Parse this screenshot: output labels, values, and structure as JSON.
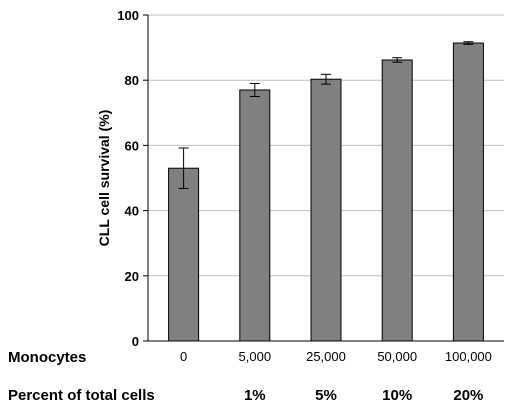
{
  "chart_data": {
    "type": "bar",
    "categories": [
      "0",
      "5,000",
      "25,000",
      "50,000",
      "100,000"
    ],
    "category_row_label": "Monocytes",
    "secondary_row_label": "Percent of total cells",
    "secondary_labels": [
      "",
      "1%",
      "5%",
      "10%",
      "20%"
    ],
    "values": [
      53,
      77,
      80.3,
      86.2,
      91.4
    ],
    "errors": [
      6.2,
      2.0,
      1.5,
      0.7,
      0.4
    ],
    "ylabel": "CLL cell survival (%)",
    "xlabel": "",
    "title": "",
    "ylim": [
      0,
      100
    ],
    "yticks": [
      0,
      20,
      40,
      60,
      80,
      100
    ],
    "grid": true,
    "bar_color": "#808080",
    "bar_edge_color": "#000000",
    "grid_color": "#bfbfbf"
  }
}
